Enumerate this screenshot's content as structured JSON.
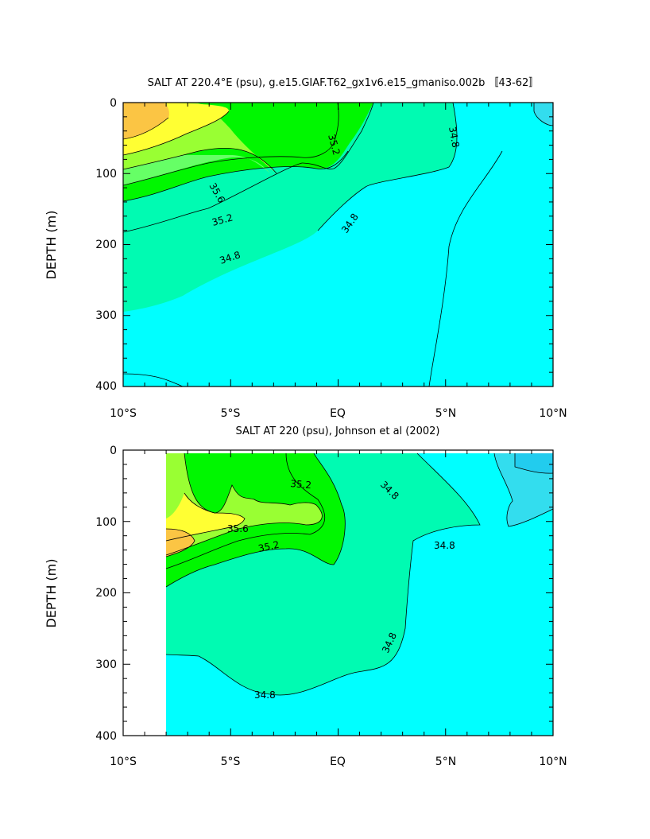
{
  "chart_data": [
    {
      "type": "heatmap",
      "title": "SALT AT 220.4°E (psu), g.e15.GIAF.T62_gx1v6.e15_gmaniso.002b 〚43-62〛",
      "ylabel": "DEPTH (m)",
      "xlabel": "",
      "xlim": [
        -10,
        10
      ],
      "ylim": [
        400,
        0
      ],
      "x_ticks": [
        -10,
        -5,
        0,
        5,
        10
      ],
      "x_tick_labels": [
        "10°S",
        "5°S",
        "EQ",
        "5°N",
        "10°N"
      ],
      "y_ticks": [
        0,
        100,
        200,
        300,
        400
      ],
      "y_tick_labels": [
        "0",
        "100",
        "200",
        "300",
        "400"
      ],
      "contour_labels": [
        "35.6",
        "35.2",
        "35.2",
        "34.8",
        "34.8",
        "34.8"
      ],
      "levels": [
        34.6,
        34.8,
        35.0,
        35.2,
        35.4,
        35.6,
        35.8
      ],
      "colors": [
        "#33ddee",
        "#00ffff",
        "#00fbb2",
        "#66ff66",
        "#00f700",
        "#99ff33",
        "#ffff33",
        "#fbc544"
      ]
    },
    {
      "type": "heatmap",
      "title": "SALT AT 220 (psu), Johnson et al (2002)",
      "ylabel": "DEPTH (m)",
      "xlabel": "",
      "xlim": [
        -10,
        10
      ],
      "ylim": [
        400,
        0
      ],
      "x_ticks": [
        -10,
        -5,
        0,
        5,
        10
      ],
      "x_tick_labels": [
        "10°S",
        "5°S",
        "EQ",
        "5°N",
        "10°N"
      ],
      "y_ticks": [
        0,
        100,
        200,
        300,
        400
      ],
      "y_tick_labels": [
        "0",
        "100",
        "200",
        "300",
        "400"
      ],
      "contour_labels": [
        "35.2",
        "35.6",
        "35.2",
        "34.8",
        "34.8",
        "34.8",
        "34.8"
      ],
      "data_extent_x": [
        -8,
        10
      ],
      "colors": [
        "#22ccee",
        "#33ddee",
        "#00ffff",
        "#00fbb2",
        "#66ff66",
        "#00f700",
        "#99ff33",
        "#ffff33",
        "#fbc544"
      ]
    }
  ]
}
